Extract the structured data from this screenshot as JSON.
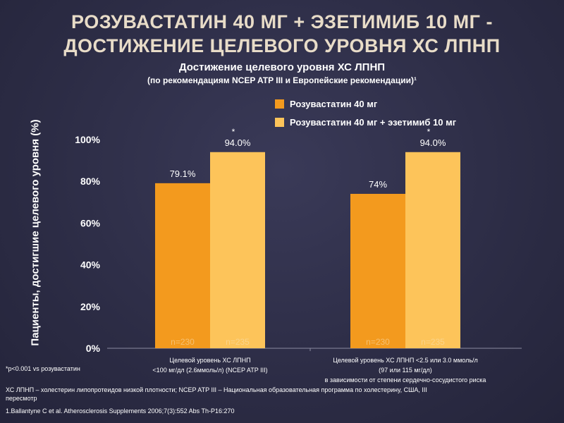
{
  "slide": {
    "title_line1": "РОЗУВАСТАТИН 40 МГ + ЭЗЕТИМИБ 10 МГ -",
    "title_line2": "ДОСТИЖЕНИЕ ЦЕЛЕВОГО УРОВНЯ ХС ЛПНП"
  },
  "colors": {
    "series1": "#f39a1e",
    "series2": "#fdc45a",
    "n_label_series1": "#f6c070",
    "n_label_series2": "#fbd48a",
    "axis_text": "#ffffff"
  },
  "chart_data": {
    "type": "bar",
    "title": "Достижение целевого уровня ХС ЛПНП",
    "subtitle": "(по рекомендациям NCEP ATP III и Европейские рекомендации)¹",
    "ylabel": "Пациенты, достигшие целевого уровня (%)",
    "ylim": [
      0,
      100
    ],
    "yticks": [
      "0%",
      "20%",
      "40%",
      "60%",
      "80%",
      "100%"
    ],
    "legend_position": "top-right",
    "grid": false,
    "categories": [
      [
        "Целевой уровень ХС ЛПНП",
        "<100 мг/дл (2.6ммоль/л) (NCEP ATP III)"
      ],
      [
        "Целевой уровень ХС ЛПНП <2.5 или 3.0 ммоль/л",
        "(97 или 115 мг/дл)",
        "в зависимости от степени сердечно-сосудистого риска"
      ]
    ],
    "series": [
      {
        "name": "Розувастатин 40 мг",
        "values": [
          79.1,
          74
        ],
        "value_labels": [
          "79.1%",
          "74%"
        ],
        "n_labels": [
          "n=230",
          "n=230"
        ],
        "markers": [
          "",
          ""
        ]
      },
      {
        "name": "Розувастатин 40 мг + эзетимиб 10 мг",
        "values": [
          94.0,
          94.0
        ],
        "value_labels": [
          "94.0%",
          "94.0%"
        ],
        "n_labels": [
          "n=235",
          "n=235"
        ],
        "markers": [
          "*",
          "*"
        ]
      }
    ]
  },
  "footnotes": {
    "significance": "*p<0.001 vs розувастатин",
    "abbreviations": "ХС ЛПНП – холестерин липопротеидов низкой плотности; NCEP ATP III – Национальная образовательная программа по холестерину, США, III пересмотр",
    "reference": "1.Ballantyne C et al. Atherosclerosis Supplements 2006;7(3):552 Abs Th-P16:270"
  }
}
